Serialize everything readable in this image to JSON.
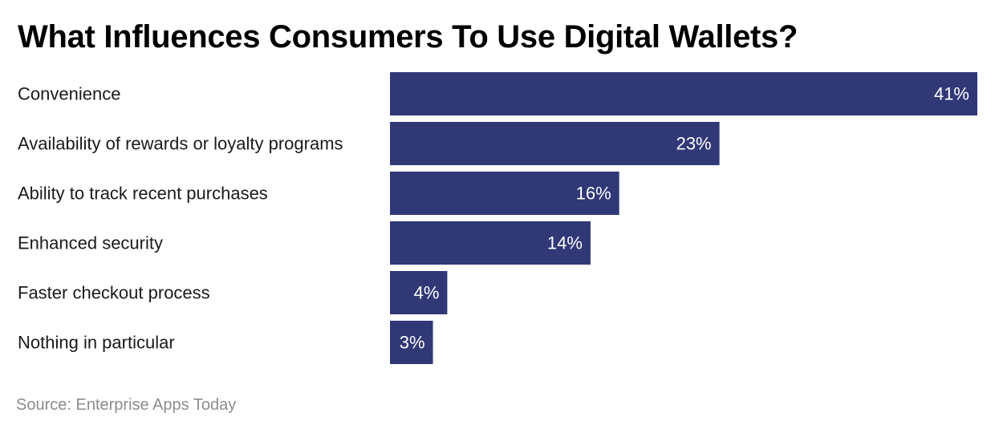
{
  "chart_data": {
    "type": "bar",
    "orientation": "horizontal",
    "title": "What Influences Consumers To Use Digital Wallets?",
    "categories": [
      "Convenience",
      "Availability of rewards or loyalty programs",
      "Ability to track recent purchases",
      "Enhanced security",
      "Faster checkout process",
      "Nothing in particular"
    ],
    "values": [
      41,
      23,
      16,
      14,
      4,
      3
    ],
    "value_labels": [
      "41%",
      "23%",
      "16%",
      "14%",
      "4%",
      "3%"
    ],
    "xlim": [
      0,
      41
    ],
    "xlabel": "",
    "ylabel": "",
    "grid": false,
    "bar_color": "#303876",
    "source": "Source: Enterprise Apps Today"
  }
}
